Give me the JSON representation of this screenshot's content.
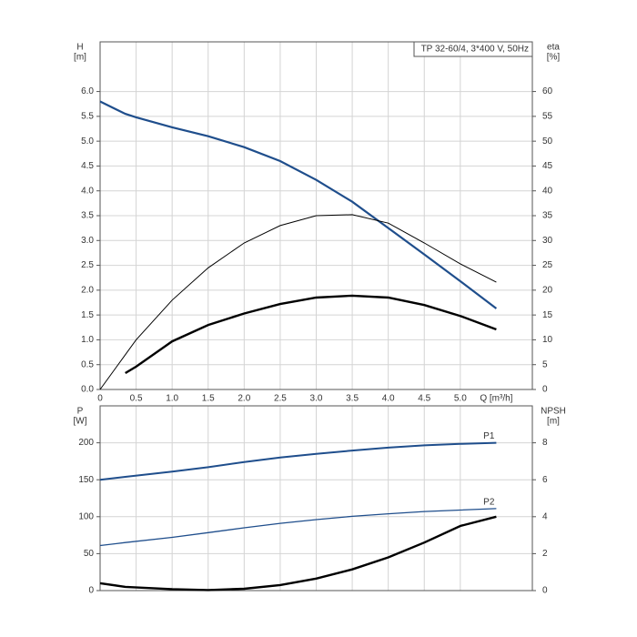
{
  "chart_data": [
    {
      "type": "line",
      "title": "TP 32-60/4, 3*400 V, 50Hz",
      "ylabel": [
        "H",
        "[m]"
      ],
      "y2label": [
        "eta",
        "[%]"
      ],
      "xlabel": "Q [m³/h]",
      "xlim": [
        0,
        6
      ],
      "xticks": [
        0,
        0.5,
        {
          "value": 1,
          "label": "1.0"
        },
        1.5,
        {
          "value": 2,
          "label": "2.0"
        },
        2.5,
        {
          "value": 3,
          "label": "3.0"
        },
        3.5,
        {
          "value": 4,
          "label": "4.0"
        },
        4.5,
        {
          "value": 5,
          "label": "5.0"
        }
      ],
      "ylim": [
        0,
        7
      ],
      "yticks": [
        {
          "value": 0,
          "label": "0.0"
        },
        0.5,
        {
          "value": 1,
          "label": "1.0"
        },
        1.5,
        {
          "value": 2,
          "label": "2.0"
        },
        2.5,
        {
          "value": 3,
          "label": "3.0"
        },
        3.5,
        {
          "value": 4,
          "label": "4.0"
        },
        4.5,
        {
          "value": 5,
          "label": "5.0"
        },
        5.5,
        {
          "value": 6,
          "label": "6.0"
        }
      ],
      "y2lim": [
        0,
        70
      ],
      "y2ticks": [
        0,
        5,
        10,
        15,
        20,
        25,
        30,
        35,
        40,
        45,
        50,
        55,
        60
      ],
      "grid": true,
      "x": [
        0,
        0.35,
        0.5,
        1,
        1.5,
        2,
        2.5,
        3,
        3.5,
        4,
        4.5,
        5,
        5.5
      ],
      "series": [
        {
          "color": "#1f4e8c",
          "values": [
            5.8,
            5.55,
            5.48,
            5.28,
            5.1,
            4.88,
            4.6,
            4.22,
            3.78,
            3.25,
            2.72,
            2.18,
            1.63
          ]
        },
        {
          "color": "#000000",
          "axis": "y2",
          "values": [
            0,
            7,
            10,
            18,
            24.5,
            29.5,
            33,
            35,
            35.2,
            33.5,
            29.5,
            25.3,
            21.6
          ]
        },
        {
          "color": "#000000",
          "axis": "y2",
          "values": [
            null,
            3.3,
            4.6,
            9.7,
            13,
            15.3,
            17.2,
            18.5,
            18.9,
            18.5,
            17,
            14.8,
            12.1
          ]
        }
      ]
    },
    {
      "type": "line",
      "ylabel": [
        "P",
        "[W]"
      ],
      "y2label": [
        "NPSH",
        "[m]"
      ],
      "xlim": [
        0,
        6
      ],
      "ylim": [
        0,
        250
      ],
      "yticks": [
        0,
        50,
        100,
        150,
        200
      ],
      "y2lim": [
        0,
        10
      ],
      "y2ticks": [
        0,
        2,
        4,
        6,
        8
      ],
      "grid": true,
      "x": [
        0,
        0.35,
        1,
        1.5,
        2,
        2.5,
        3,
        3.5,
        4,
        4.5,
        5,
        5.5
      ],
      "series": [
        {
          "name": "P1",
          "color": "#1f4e8c",
          "values": [
            150,
            154,
            161,
            167,
            174,
            180,
            185,
            189.5,
            193.5,
            196.5,
            198.5,
            200
          ]
        },
        {
          "name": "P2",
          "color": "#1f4e8c",
          "values": [
            61,
            65,
            72,
            78.5,
            85,
            91,
            96,
            100.5,
            104,
            107,
            109,
            111
          ]
        },
        {
          "color": "#000000",
          "axis": "y2",
          "values": [
            0.4,
            0.2,
            0.08,
            0.03,
            0.1,
            0.3,
            0.65,
            1.15,
            1.8,
            2.6,
            3.5,
            4.0
          ]
        }
      ]
    }
  ]
}
